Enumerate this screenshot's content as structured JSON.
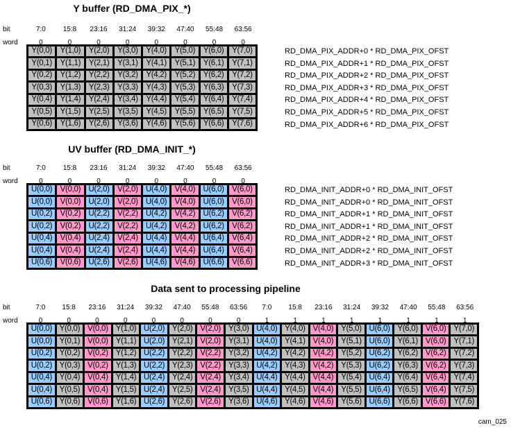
{
  "colors": {
    "Y": "#c0c0c0",
    "U": "#99ccff",
    "V": "#ff99cc",
    "border": "#000000"
  },
  "labels": {
    "bit": "bit",
    "word": "word"
  },
  "bits8": [
    "7:0",
    "15:8",
    "23:16",
    "31:24",
    "39:32",
    "47:40",
    "55:48",
    "63:56"
  ],
  "y_buffer": {
    "title": "Y buffer (RD_DMA_PIX_*)",
    "words": [
      "0",
      "0",
      "0",
      "0",
      "0",
      "0",
      "0",
      "0"
    ],
    "rows": [
      [
        "Y(0,0)",
        "Y(1,0)",
        "Y(2,0)",
        "Y(3,0)",
        "Y(4,0)",
        "Y(5,0)",
        "Y(6,0)",
        "Y(7,0)"
      ],
      [
        "Y(0,1)",
        "Y(1,1)",
        "Y(2,1)",
        "Y(3,1)",
        "Y(4,1)",
        "Y(5,1)",
        "Y(6,1)",
        "Y(7,1)"
      ],
      [
        "Y(0,2)",
        "Y(1,2)",
        "Y(2,2)",
        "Y(3,2)",
        "Y(4,2)",
        "Y(5,2)",
        "Y(6,2)",
        "Y(7,2)"
      ],
      [
        "Y(0,3)",
        "Y(1,3)",
        "Y(2,3)",
        "Y(3,3)",
        "Y(4,3)",
        "Y(5,3)",
        "Y(6,3)",
        "Y(7,3)"
      ],
      [
        "Y(0,4)",
        "Y(1,4)",
        "Y(2,4)",
        "Y(3,4)",
        "Y(4,4)",
        "Y(5,4)",
        "Y(6,4)",
        "Y(7,4)"
      ],
      [
        "Y(0,5)",
        "Y(1,5)",
        "Y(2,5)",
        "Y(3,5)",
        "Y(4,5)",
        "Y(5,5)",
        "Y(6,5)",
        "Y(7,5)"
      ],
      [
        "Y(0,6)",
        "Y(1,6)",
        "Y(2,6)",
        "Y(3,6)",
        "Y(4,6)",
        "Y(5,6)",
        "Y(6,6)",
        "Y(7,6)"
      ]
    ],
    "addresses": [
      "RD_DMA_PIX_ADDR+0 * RD_DMA_PIX_OFST",
      "RD_DMA_PIX_ADDR+1 * RD_DMA_PIX_OFST",
      "RD_DMA_PIX_ADDR+2 * RD_DMA_PIX_OFST",
      "RD_DMA_PIX_ADDR+3 * RD_DMA_PIX_OFST",
      "RD_DMA_PIX_ADDR+4 * RD_DMA_PIX_OFST",
      "RD_DMA_PIX_ADDR+5 * RD_DMA_PIX_OFST",
      "RD_DMA_PIX_ADDR+6 * RD_DMA_PIX_OFST"
    ]
  },
  "uv_buffer": {
    "title": "UV buffer (RD_DMA_INIT_*)",
    "words": [
      "0",
      "0",
      "0",
      "0",
      "0",
      "0",
      "0",
      "0"
    ],
    "rows": [
      [
        "U(0,0)",
        "V(0,0)",
        "U(2,0)",
        "V(2,0)",
        "U(4,0)",
        "V(4,0)",
        "U(6,0)",
        "V(6,0)"
      ],
      [
        "U(0,0)",
        "V(0,0)",
        "U(2,0)",
        "V(2,0)",
        "U(4,0)",
        "V(4,0)",
        "U(6,0)",
        "V(6,0)"
      ],
      [
        "U(0,2)",
        "V(0,2)",
        "U(2,2)",
        "V(2,2)",
        "U(4,2)",
        "V(4,2)",
        "U(6,2)",
        "V(6,2)"
      ],
      [
        "U(0,2)",
        "V(0,2)",
        "U(2,2)",
        "V(2,2)",
        "U(4,2)",
        "V(4,2)",
        "U(6,2)",
        "V(6,2)"
      ],
      [
        "U(0,4)",
        "V(0,4)",
        "U(2,4)",
        "V(2,4)",
        "U(4,4)",
        "V(4,4)",
        "U(6,4)",
        "V(6,4)"
      ],
      [
        "U(0,4)",
        "V(0,4)",
        "U(2,4)",
        "V(2,4)",
        "U(4,4)",
        "V(4,4)",
        "U(6,4)",
        "V(6,4)"
      ],
      [
        "U(0,6)",
        "V(0,6)",
        "U(2,6)",
        "V(2,6)",
        "U(4,6)",
        "V(4,6)",
        "U(6,6)",
        "V(6,6)"
      ]
    ],
    "addresses": [
      "RD_DMA_INIT_ADDR+0 * RD_DMA_INIT_OFST",
      "RD_DMA_INIT_ADDR+0 * RD_DMA_INIT_OFST",
      "RD_DMA_INIT_ADDR+1 * RD_DMA_INIT_OFST",
      "RD_DMA_INIT_ADDR+1 * RD_DMA_INIT_OFST",
      "RD_DMA_INIT_ADDR+2 * RD_DMA_INIT_OFST",
      "RD_DMA_INIT_ADDR+2 * RD_DMA_INIT_OFST",
      "RD_DMA_INIT_ADDR+3 * RD_DMA_INIT_OFST"
    ]
  },
  "pipeline": {
    "title": "Data sent to processing pipeline",
    "bits": [
      "7:0",
      "15:8",
      "23:16",
      "31:24",
      "39:32",
      "47:40",
      "55:48",
      "63:56",
      "7:0",
      "15:8",
      "23:16",
      "31:24",
      "39:32",
      "47:40",
      "55:48",
      "63:56"
    ],
    "words": [
      "0",
      "0",
      "0",
      "0",
      "0",
      "0",
      "0",
      "0",
      "1",
      "1",
      "1",
      "1",
      "1",
      "1",
      "1",
      "1"
    ],
    "rows": [
      [
        "U(0,0)",
        "Y(0,0)",
        "V(0,0)",
        "Y(1,0)",
        "U(2,0)",
        "Y(2,0)",
        "V(2,0)",
        "Y(3,0)",
        "U(4,0)",
        "Y(4,0)",
        "V(4,0)",
        "Y(5,0)",
        "U(6,0)",
        "Y(6,0)",
        "V(6,0)",
        "Y(7,0)"
      ],
      [
        "U(0,0)",
        "Y(0,1)",
        "V(0,0)",
        "Y(1,1)",
        "U(2,0)",
        "Y(2,1)",
        "V(2,0)",
        "Y(3,1)",
        "U(4,0)",
        "Y(4,1)",
        "V(4,0)",
        "Y(5,1)",
        "U(6,0)",
        "Y(6,1)",
        "V(6,0)",
        "Y(7,1)"
      ],
      [
        "U(0,2)",
        "Y(0,2)",
        "V(0,2)",
        "Y(1,2)",
        "U(2,2)",
        "Y(2,2)",
        "V(2,2)",
        "Y(3,2)",
        "U(4,2)",
        "Y(4,2)",
        "V(4,2)",
        "Y(5,2)",
        "U(6,2)",
        "Y(6,2)",
        "V(6,2)",
        "Y(7,2)"
      ],
      [
        "U(0,2)",
        "Y(0,3)",
        "V(0,2)",
        "Y(1,3)",
        "U(2,2)",
        "Y(2,3)",
        "V(2,2)",
        "Y(3,3)",
        "U(4,2)",
        "Y(4,3)",
        "V(4,2)",
        "Y(5,3)",
        "U(6,2)",
        "Y(6,3)",
        "V(6,2)",
        "Y(7,3)"
      ],
      [
        "U(0,4)",
        "Y(0,4)",
        "V(0,4)",
        "Y(1,4)",
        "U(2,4)",
        "Y(2,4)",
        "V(2,4)",
        "Y(3,4)",
        "U(4,4)",
        "Y(4,4)",
        "V(4,4)",
        "Y(5,4)",
        "U(6,4)",
        "Y(6,4)",
        "V(6,4)",
        "Y(7,4)"
      ],
      [
        "U(0,4)",
        "Y(0,5)",
        "V(0,4)",
        "Y(1,5)",
        "U(2,4)",
        "Y(2,5)",
        "V(2,4)",
        "Y(3,5)",
        "U(4,4)",
        "Y(4,5)",
        "V(4,4)",
        "Y(5,5)",
        "U(6,4)",
        "Y(6,5)",
        "V(6,4)",
        "Y(7,5)"
      ],
      [
        "U(0,6)",
        "Y(0,6)",
        "V(0,6)",
        "Y(1,6)",
        "U(2,6)",
        "Y(2,6)",
        "V(2,6)",
        "Y(3,6)",
        "U(4,6)",
        "Y(4,6)",
        "V(4,6)",
        "Y(5,6)",
        "U(6,6)",
        "Y(6,6)",
        "V(6,6)",
        "Y(7,6)"
      ]
    ]
  },
  "figure_id": "cam_025"
}
